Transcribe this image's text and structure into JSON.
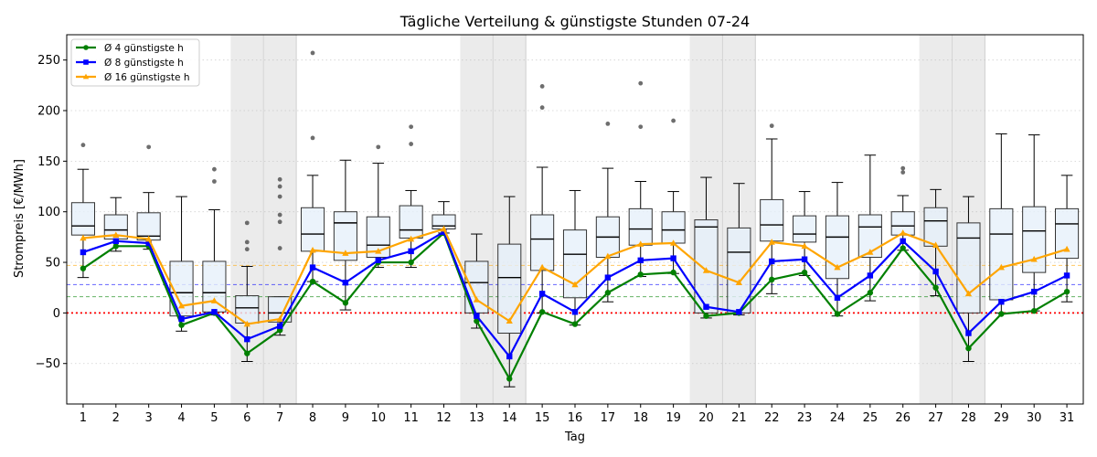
{
  "chart_data": {
    "type": "box",
    "title": "Tägliche Verteilung & günstigste Stunden 07-24",
    "xlabel": "Tag",
    "ylabel": "Strompreis [€/MWh]",
    "ylim": [
      -90,
      275
    ],
    "yticks": [
      -50,
      0,
      50,
      100,
      150,
      200,
      250
    ],
    "categories": [
      "1",
      "2",
      "3",
      "4",
      "5",
      "6",
      "7",
      "8",
      "9",
      "10",
      "11",
      "12",
      "13",
      "14",
      "15",
      "16",
      "17",
      "18",
      "19",
      "20",
      "21",
      "22",
      "23",
      "24",
      "25",
      "26",
      "27",
      "28",
      "29",
      "30",
      "31"
    ],
    "weekend_days": [
      6,
      7,
      13,
      14,
      20,
      21,
      27,
      28
    ],
    "grid": "y-dotted",
    "legend_position": "top-left",
    "colors": {
      "box_fill": "#e6f0fa",
      "box_edge": "#333333",
      "median": "#000000",
      "weekend_band": "#e0e0e0",
      "zero_line": "#ff0000",
      "outlier": "#555555"
    },
    "boxes": [
      {
        "whislo": 35,
        "q1": 77,
        "med": 86,
        "q3": 109,
        "whishi": 142,
        "fliers": [
          166
        ]
      },
      {
        "whislo": 61,
        "q1": 73,
        "med": 82,
        "q3": 97,
        "whishi": 114,
        "fliers": []
      },
      {
        "whislo": 63,
        "q1": 72,
        "med": 76,
        "q3": 99,
        "whishi": 119,
        "fliers": [
          164
        ]
      },
      {
        "whislo": -18,
        "q1": -3,
        "med": 20,
        "q3": 51,
        "whishi": 115,
        "fliers": []
      },
      {
        "whislo": -2,
        "q1": 1,
        "med": 20,
        "q3": 51,
        "whishi": 102,
        "fliers": [
          130,
          142
        ]
      },
      {
        "whislo": -48,
        "q1": -10,
        "med": 5,
        "q3": 17,
        "whishi": 46,
        "fliers": [
          63,
          70,
          89
        ]
      },
      {
        "whislo": -22,
        "q1": -9,
        "med": 0,
        "q3": 16,
        "whishi": 16,
        "fliers": [
          64,
          90,
          97,
          115,
          125,
          132
        ]
      },
      {
        "whislo": 31,
        "q1": 61,
        "med": 78,
        "q3": 104,
        "whishi": 136,
        "fliers": [
          173,
          257
        ]
      },
      {
        "whislo": 3,
        "q1": 52,
        "med": 89,
        "q3": 100,
        "whishi": 151,
        "fliers": []
      },
      {
        "whislo": 45,
        "q1": 55,
        "med": 67,
        "q3": 95,
        "whishi": 148,
        "fliers": [
          164
        ]
      },
      {
        "whislo": 45,
        "q1": 74,
        "med": 82,
        "q3": 106,
        "whishi": 121,
        "fliers": [
          167,
          184
        ]
      },
      {
        "whislo": 79,
        "q1": 83,
        "med": 86,
        "q3": 97,
        "whishi": 110,
        "fliers": []
      },
      {
        "whislo": -15,
        "q1": 0,
        "med": 30,
        "q3": 51,
        "whishi": 78,
        "fliers": []
      },
      {
        "whislo": -73,
        "q1": -20,
        "med": 35,
        "q3": 68,
        "whishi": 115,
        "fliers": []
      },
      {
        "whislo": 0,
        "q1": 42,
        "med": 73,
        "q3": 97,
        "whishi": 144,
        "fliers": [
          203,
          224
        ]
      },
      {
        "whislo": -12,
        "q1": 15,
        "med": 58,
        "q3": 82,
        "whishi": 121,
        "fliers": []
      },
      {
        "whislo": 11,
        "q1": 55,
        "med": 75,
        "q3": 95,
        "whishi": 143,
        "fliers": [
          187
        ]
      },
      {
        "whislo": 36,
        "q1": 67,
        "med": 83,
        "q3": 103,
        "whishi": 130,
        "fliers": [
          184,
          227
        ]
      },
      {
        "whislo": 39,
        "q1": 69,
        "med": 82,
        "q3": 100,
        "whishi": 120,
        "fliers": [
          190
        ]
      },
      {
        "whislo": -5,
        "q1": 0,
        "med": 85,
        "q3": 92,
        "whishi": 134,
        "fliers": []
      },
      {
        "whislo": -2,
        "q1": 0,
        "med": 60,
        "q3": 84,
        "whishi": 128,
        "fliers": []
      },
      {
        "whislo": 19,
        "q1": 71,
        "med": 87,
        "q3": 112,
        "whishi": 172,
        "fliers": [
          185
        ]
      },
      {
        "whislo": 37,
        "q1": 70,
        "med": 78,
        "q3": 96,
        "whishi": 120,
        "fliers": []
      },
      {
        "whislo": -3,
        "q1": 34,
        "med": 75,
        "q3": 96,
        "whishi": 129,
        "fliers": []
      },
      {
        "whislo": 12,
        "q1": 55,
        "med": 85,
        "q3": 97,
        "whishi": 156,
        "fliers": []
      },
      {
        "whislo": 62,
        "q1": 77,
        "med": 86,
        "q3": 100,
        "whishi": 116,
        "fliers": [
          139,
          143
        ]
      },
      {
        "whislo": 17,
        "q1": 66,
        "med": 91,
        "q3": 104,
        "whishi": 122,
        "fliers": []
      },
      {
        "whislo": -48,
        "q1": 0,
        "med": 74,
        "q3": 89,
        "whishi": 115,
        "fliers": []
      },
      {
        "whislo": 0,
        "q1": 13,
        "med": 78,
        "q3": 103,
        "whishi": 177,
        "fliers": []
      },
      {
        "whislo": 2,
        "q1": 40,
        "med": 81,
        "q3": 105,
        "whishi": 176,
        "fliers": []
      },
      {
        "whislo": 11,
        "q1": 54,
        "med": 88,
        "q3": 103,
        "whishi": 136,
        "fliers": []
      }
    ],
    "series": [
      {
        "name": "Ø 4 günstigste h",
        "color": "#008000",
        "marker": "circle",
        "values": [
          44,
          66,
          66,
          -12,
          0,
          -40,
          -17,
          31,
          10,
          50,
          50,
          79,
          -8,
          -65,
          1,
          -11,
          20,
          38,
          40,
          -3,
          0,
          33,
          40,
          -1,
          20,
          64,
          25,
          -35,
          -1,
          2,
          21
        ],
        "mean_line": 16
      },
      {
        "name": "Ø 8 günstigste h",
        "color": "#0000ff",
        "marker": "square",
        "values": [
          60,
          71,
          69,
          -6,
          1,
          -26,
          -13,
          45,
          30,
          52,
          61,
          80,
          -3,
          -43,
          19,
          1,
          35,
          52,
          54,
          6,
          1,
          51,
          53,
          15,
          37,
          71,
          41,
          -20,
          11,
          21,
          37
        ],
        "mean_line": 28
      },
      {
        "name": "Ø 16 günstigste h",
        "color": "#ffa500",
        "marker": "triangle",
        "values": [
          74,
          77,
          73,
          7,
          12,
          -11,
          -6,
          62,
          59,
          61,
          73,
          83,
          13,
          -8,
          45,
          28,
          56,
          68,
          69,
          42,
          30,
          70,
          66,
          45,
          60,
          79,
          67,
          19,
          45,
          53,
          63
        ],
        "mean_line": 47
      }
    ]
  }
}
